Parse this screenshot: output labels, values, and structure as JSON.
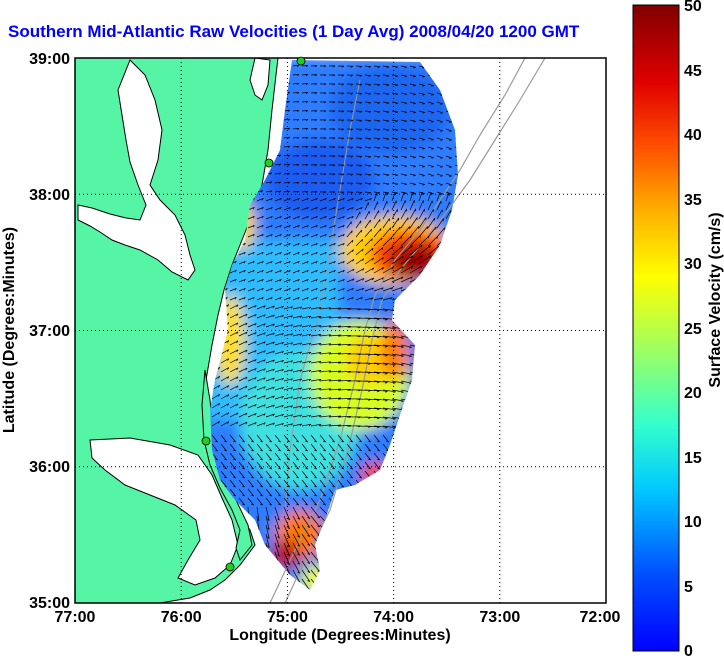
{
  "title": "Southern Mid-Atlantic Raw Velocities (1 Day Avg) 2008/04/20 1200 GMT",
  "x_axis": {
    "label": "Longitude (Degrees:Minutes)",
    "ticks": [
      "77:00",
      "76:00",
      "75:00",
      "74:00",
      "73:00",
      "72:00"
    ]
  },
  "y_axis": {
    "label": "Latitude (Degrees:Minutes)",
    "ticks": [
      "39:00",
      "38:00",
      "37:00",
      "36:00",
      "35:00"
    ]
  },
  "colorbar": {
    "label": "Surface Velocity (cm/s)",
    "ticks": [
      "50",
      "45",
      "40",
      "35",
      "30",
      "25",
      "20",
      "15",
      "10",
      "5",
      "0"
    ],
    "min": 0,
    "max": 50
  },
  "colors": {
    "land": "#55f5a5",
    "water": "#ffffff",
    "title": "#0000ff"
  },
  "grid": "dotted",
  "stations": [
    "station-1",
    "station-2",
    "station-3",
    "station-4"
  ]
}
